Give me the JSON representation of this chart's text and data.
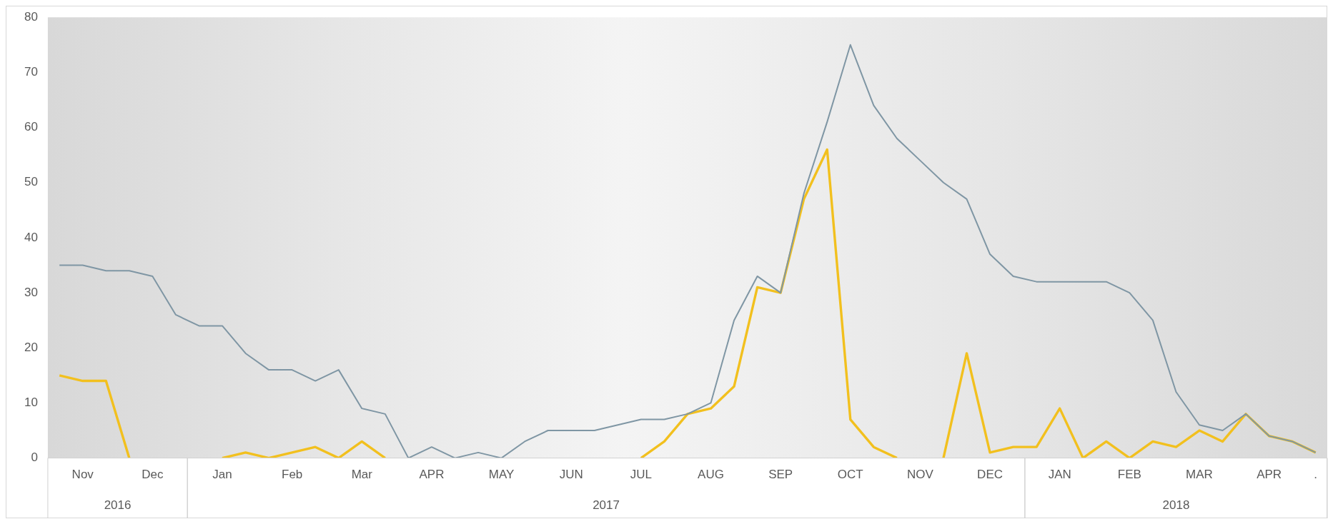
{
  "chart_data": {
    "type": "line",
    "categories": [
      null,
      "Nov",
      null,
      null,
      "Dec",
      null,
      null,
      "Jan",
      null,
      null,
      "Feb",
      null,
      null,
      "Mar",
      null,
      null,
      "APR",
      null,
      null,
      "MAY",
      null,
      null,
      "JUN",
      null,
      null,
      "JUL",
      null,
      null,
      "AUG",
      null,
      null,
      "SEP",
      null,
      null,
      "OCT",
      null,
      null,
      "NOV",
      null,
      null,
      "DEC",
      null,
      null,
      "JAN",
      null,
      null,
      "FEB",
      null,
      null,
      "MAR",
      null,
      null,
      "APR",
      null,
      "."
    ],
    "series": [
      {
        "color": "#7f96a4",
        "values": [
          35,
          35,
          34,
          34,
          33,
          26,
          24,
          24,
          19,
          16,
          16,
          14,
          16,
          9,
          8,
          0,
          2,
          0,
          1,
          0,
          3,
          5,
          5,
          5,
          6,
          7,
          7,
          8,
          10,
          25,
          33,
          30,
          48,
          61,
          75,
          64,
          58,
          54,
          50,
          47,
          37,
          33,
          32,
          32,
          32,
          32,
          30,
          25,
          12,
          6,
          5,
          8,
          4,
          3,
          1
        ]
      },
      {
        "color": "#f2c01e",
        "values": [
          15,
          14,
          14,
          0,
          null,
          null,
          null,
          0,
          1,
          0,
          1,
          2,
          0,
          3,
          0,
          null,
          null,
          null,
          null,
          null,
          null,
          null,
          null,
          null,
          null,
          0,
          3,
          8,
          9,
          13,
          31,
          30,
          47,
          56,
          7,
          2,
          0,
          null,
          0,
          19,
          1,
          2,
          2,
          9,
          0,
          3,
          0,
          3,
          2,
          5,
          3,
          8,
          4,
          3,
          1
        ]
      }
    ],
    "ylim": [
      0,
      80
    ],
    "yticks": [
      0,
      10,
      20,
      30,
      40,
      50,
      60,
      70,
      80
    ],
    "grid": false,
    "legend": false,
    "marker": "none",
    "line_style": "solid",
    "annotations": [
      "2016",
      "2017",
      "2018"
    ]
  }
}
